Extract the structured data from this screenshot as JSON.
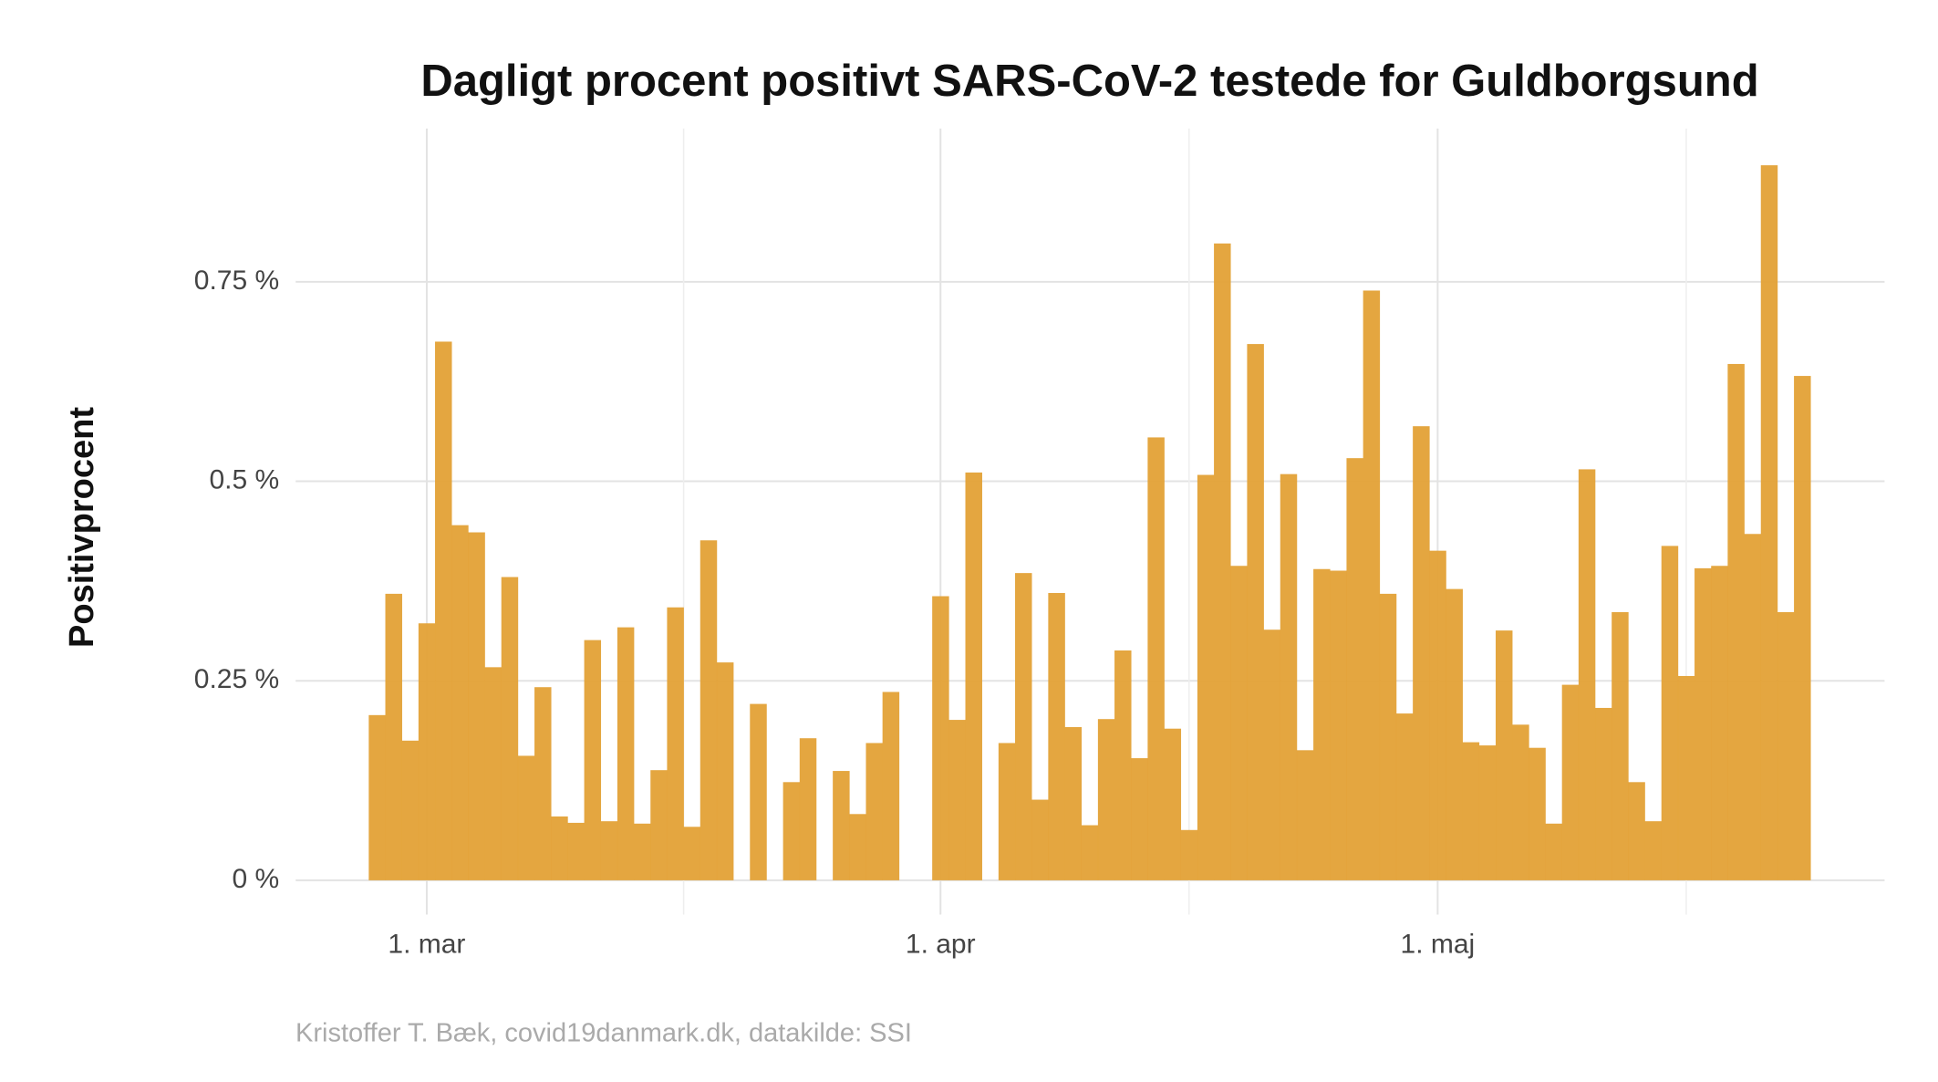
{
  "chart_data": {
    "type": "bar",
    "title": "Dagligt procent positivt SARS-CoV-2 testede for Guldborgsund",
    "y_label": "Positivprocent",
    "caption": "Kristoffer T. Bæk, covid19danmark.dk, datakilde: SSI",
    "color": "#e3a136",
    "grid": true,
    "categories": [
      null,
      null,
      null,
      "1. mar",
      null,
      null,
      null,
      null,
      null,
      null,
      null,
      null,
      null,
      null,
      null,
      null,
      null,
      null,
      null,
      null,
      null,
      null,
      null,
      null,
      null,
      null,
      null,
      null,
      null,
      null,
      null,
      null,
      null,
      null,
      "1. apr",
      null,
      null,
      null,
      null,
      null,
      null,
      null,
      null,
      null,
      null,
      null,
      null,
      null,
      null,
      null,
      null,
      null,
      null,
      null,
      null,
      null,
      null,
      null,
      null,
      null,
      null,
      null,
      null,
      null,
      "1. maj",
      null,
      null,
      null,
      null,
      null,
      null,
      null,
      null,
      null,
      null,
      null,
      null,
      null,
      null,
      null,
      null,
      null,
      null,
      null,
      null,
      null,
      null
    ],
    "values": [
      0.207,
      0.359,
      0.175,
      0.322,
      0.675,
      0.445,
      0.436,
      0.267,
      0.38,
      0.156,
      0.242,
      0.08,
      0.072,
      0.301,
      0.074,
      0.317,
      0.071,
      0.138,
      0.342,
      0.067,
      0.426,
      0.273,
      0,
      0.221,
      0,
      0.123,
      0.178,
      0,
      0.137,
      0.083,
      0.172,
      0.236,
      0,
      0,
      0.356,
      0.201,
      0.511,
      0,
      0.172,
      0.385,
      0.101,
      0.36,
      0.192,
      0.069,
      0.202,
      0.288,
      0.153,
      0.555,
      0.19,
      0.063,
      0.508,
      0.798,
      0.394,
      0.672,
      0.314,
      0.509,
      0.163,
      0.39,
      0.388,
      0.529,
      0.739,
      0.359,
      0.209,
      0.569,
      0.413,
      0.365,
      0.173,
      0.169,
      0.313,
      0.195,
      0.166,
      0.071,
      0.245,
      0.515,
      0.216,
      0.336,
      0.123,
      0.074,
      0.419,
      0.256,
      0.391,
      0.394,
      0.647,
      0.434,
      0.896,
      0.336,
      0.632
    ],
    "ylim": [
      -0.043,
      0.942
    ],
    "yticks": [
      {
        "value": 0,
        "label": "0 %"
      },
      {
        "value": 0.25,
        "label": "0.25 %"
      },
      {
        "value": 0.5,
        "label": "0.5 %"
      },
      {
        "value": 0.75,
        "label": "0.75 %"
      }
    ]
  }
}
